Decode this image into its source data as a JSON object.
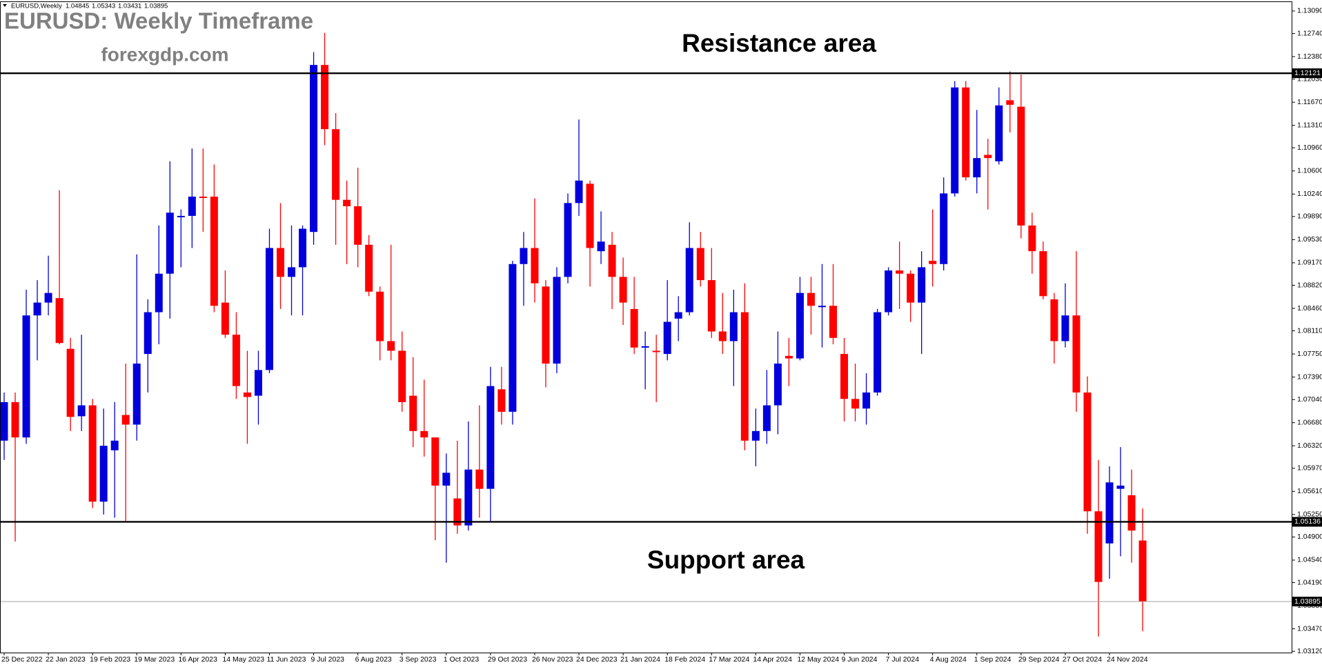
{
  "chart_data": {
    "type": "candlestick",
    "symbol": "EURUSD,Weekly",
    "title": "EURUSD: Weekly Timeframe",
    "subtitle": "forexgdp.com",
    "annotations": [
      "Resistance area",
      "Support area"
    ],
    "up_color": "#0000dd",
    "down_color": "#ff0000",
    "line_color": "#000000",
    "categories": [
      "25 Dec 2022",
      null,
      null,
      null,
      "22 Jan 2023",
      null,
      null,
      null,
      "19 Feb 2023",
      null,
      null,
      null,
      "19 Mar 2023",
      null,
      null,
      null,
      "16 Apr 2023",
      null,
      null,
      null,
      "14 May 2023",
      null,
      null,
      null,
      "11 Jun 2023",
      null,
      null,
      null,
      "9 Jul 2023",
      null,
      null,
      null,
      "6 Aug 2023",
      null,
      null,
      null,
      "3 Sep 2023",
      null,
      null,
      null,
      "1 Oct 2023",
      null,
      null,
      null,
      "29 Oct 2023",
      null,
      null,
      null,
      "26 Nov 2023",
      null,
      null,
      null,
      "24 Dec 2023",
      null,
      null,
      null,
      "21 Jan 2024",
      null,
      null,
      null,
      "18 Feb 2024",
      null,
      null,
      null,
      "17 Mar 2024",
      null,
      null,
      null,
      "14 Apr 2024",
      null,
      null,
      null,
      "12 May 2024",
      null,
      null,
      null,
      "9 Jun 2024",
      null,
      null,
      null,
      "7 Jul 2024",
      null,
      null,
      null,
      "4 Aug 2024",
      null,
      null,
      null,
      "1 Sep 2024",
      null,
      null,
      null,
      "29 Sep 2024",
      null,
      null,
      null,
      "27 Oct 2024",
      null,
      null,
      null,
      "24 Nov 2024",
      null,
      null,
      null
    ],
    "open": [
      1.064,
      1.07,
      1.0645,
      1.0835,
      1.0855,
      1.0862,
      1.0783,
      1.0678,
      1.0695,
      1.0545,
      1.0625,
      1.068,
      1.0665,
      1.0775,
      1.084,
      1.09,
      1.099,
      1.099,
      1.102,
      1.102,
      1.0855,
      1.0805,
      1.0715,
      1.071,
      1.075,
      1.094,
      1.0895,
      1.091,
      1.0965,
      1.1225,
      1.1125,
      1.1015,
      1.1005,
      1.0945,
      1.0872,
      1.0795,
      1.078,
      1.071,
      1.0655,
      1.0645,
      1.057,
      1.055,
      1.0508,
      1.0595,
      1.0565,
      1.072,
      1.0685,
      1.0915,
      1.094,
      1.088,
      1.076,
      1.0895,
      1.101,
      1.104,
      1.0935,
      1.0945,
      1.0895,
      1.0845,
      1.0785,
      1.078,
      1.0775,
      1.083,
      1.084,
      1.094,
      1.089,
      1.081,
      1.0795,
      1.084,
      1.064,
      1.0655,
      1.0695,
      1.0772,
      1.0768,
      1.087,
      1.0848,
      1.085,
      1.0775,
      1.0705,
      1.069,
      1.0715,
      1.084,
      1.0905,
      1.09,
      1.0855,
      1.092,
      1.0915,
      1.1025,
      1.119,
      1.105,
      1.1085,
      1.1075,
      1.117,
      1.116,
      1.0975,
      1.0935,
      1.086,
      1.0795,
      1.0835,
      1.0715,
      1.053,
      1.048,
      1.0565,
      1.0555,
      1.04845
    ],
    "high": [
      1.0715,
      1.0715,
      1.0875,
      1.089,
      1.0928,
      1.103,
      1.08,
      1.0805,
      1.0705,
      1.069,
      1.07,
      1.076,
      1.093,
      1.086,
      1.0975,
      1.1075,
      1.1,
      1.1095,
      1.1095,
      1.107,
      1.0905,
      1.084,
      1.078,
      1.078,
      1.097,
      1.101,
      1.0975,
      1.0975,
      1.1245,
      1.1275,
      1.115,
      1.1045,
      1.1065,
      1.096,
      1.088,
      1.0945,
      1.081,
      1.077,
      1.0735,
      1.0645,
      1.062,
      1.064,
      1.067,
      1.0695,
      1.0755,
      1.0755,
      1.092,
      1.0965,
      1.1017,
      1.089,
      1.091,
      1.1025,
      1.114,
      1.1045,
      1.0997,
      1.0965,
      1.0925,
      1.0895,
      1.081,
      1.0805,
      1.089,
      1.0865,
      1.098,
      1.0965,
      1.094,
      1.087,
      1.0875,
      1.0885,
      1.069,
      1.075,
      1.081,
      1.08,
      1.0895,
      1.0895,
      1.0915,
      1.0915,
      1.08,
      1.076,
      1.0745,
      1.0845,
      1.091,
      1.095,
      1.0905,
      1.0935,
      1.1,
      1.105,
      1.12,
      1.12,
      1.1155,
      1.111,
      1.119,
      1.1215,
      1.121,
      1.0995,
      1.095,
      1.087,
      1.0885,
      1.0935,
      1.074,
      1.061,
      1.06,
      1.063,
      1.0595,
      1.05343
    ],
    "low": [
      1.061,
      1.0483,
      1.0635,
      1.0765,
      1.0835,
      1.079,
      1.0655,
      1.0655,
      1.0535,
      1.0525,
      1.052,
      1.0515,
      1.064,
      1.0715,
      1.079,
      1.083,
      1.091,
      1.094,
      1.0965,
      1.084,
      1.08,
      1.0705,
      1.0635,
      1.0665,
      1.0745,
      1.0845,
      1.0835,
      1.0835,
      1.0945,
      1.11,
      1.0945,
      1.0915,
      1.091,
      1.0865,
      1.0765,
      1.0765,
      1.0685,
      1.063,
      1.0615,
      1.0485,
      1.045,
      1.0495,
      1.05,
      1.052,
      1.0515,
      1.0665,
      1.0665,
      1.085,
      1.0855,
      1.0723,
      1.0745,
      1.0885,
      1.099,
      1.088,
      1.0915,
      1.0845,
      1.082,
      1.0775,
      1.072,
      1.07,
      1.0765,
      1.0795,
      1.0835,
      1.088,
      1.08,
      1.0775,
      1.0725,
      1.0625,
      1.06,
      1.0635,
      1.065,
      1.0725,
      1.0765,
      1.0805,
      1.0785,
      1.079,
      1.067,
      1.067,
      1.0665,
      1.071,
      1.0835,
      1.0845,
      1.0825,
      1.0775,
      1.088,
      1.0905,
      1.102,
      1.1045,
      1.1025,
      1.1,
      1.107,
      1.112,
      1.0955,
      1.09,
      1.086,
      1.076,
      1.0785,
      1.0685,
      1.0495,
      1.0335,
      1.0425,
      1.046,
      1.045,
      1.03431
    ],
    "close": [
      1.07,
      1.0645,
      1.0835,
      1.0855,
      1.087,
      1.0792,
      1.0677,
      1.0695,
      1.0545,
      1.0632,
      1.064,
      1.0665,
      1.076,
      1.084,
      1.09,
      1.0995,
      1.099,
      1.102,
      1.1018,
      1.085,
      1.0805,
      1.0725,
      1.0708,
      1.075,
      1.094,
      1.0895,
      1.091,
      1.097,
      1.1225,
      1.1125,
      1.1015,
      1.1005,
      1.0945,
      1.0872,
      1.0795,
      1.078,
      1.07,
      1.0655,
      1.0645,
      1.057,
      1.059,
      1.0508,
      1.0595,
      1.0565,
      1.0725,
      1.0685,
      1.0915,
      1.094,
      1.0885,
      1.076,
      1.0895,
      1.101,
      1.1045,
      1.094,
      1.095,
      1.0895,
      1.0855,
      1.0785,
      1.0787,
      1.0778,
      1.0825,
      1.084,
      1.094,
      1.089,
      1.081,
      1.0795,
      1.084,
      1.064,
      1.0655,
      1.0695,
      1.076,
      1.0768,
      1.087,
      1.085,
      1.085,
      1.08,
      1.0705,
      1.069,
      1.0715,
      1.084,
      1.0905,
      1.09,
      1.0855,
      1.091,
      1.0915,
      1.1025,
      1.119,
      1.105,
      1.108,
      1.108,
      1.1162,
      1.1163,
      1.0975,
      1.0935,
      1.0865,
      1.0795,
      1.0835,
      1.0715,
      1.053,
      1.042,
      1.0575,
      1.057,
      1.05,
      1.03895
    ],
    "hlines": [
      1.12121,
      1.05136
    ],
    "ylim": [
      1.031,
      1.1324
    ],
    "yticks": [
      {
        "value": 1.1309,
        "label": "1.13090"
      },
      {
        "value": 1.1274,
        "label": "1.12740"
      },
      {
        "value": 1.1238,
        "label": "1.12380"
      },
      {
        "value": 1.1203,
        "label": "1.12030"
      },
      {
        "value": 1.1167,
        "label": "1.11670"
      },
      {
        "value": 1.1131,
        "label": "1.11310"
      },
      {
        "value": 1.1096,
        "label": "1.10960"
      },
      {
        "value": 1.106,
        "label": "1.10600"
      },
      {
        "value": 1.1024,
        "label": "1.10240"
      },
      {
        "value": 1.0989,
        "label": "1.09890"
      },
      {
        "value": 1.0953,
        "label": "1.09530"
      },
      {
        "value": 1.0917,
        "label": "1.09170"
      },
      {
        "value": 1.0882,
        "label": "1.08820"
      },
      {
        "value": 1.0846,
        "label": "1.08460"
      },
      {
        "value": 1.0811,
        "label": "1.08110"
      },
      {
        "value": 1.0775,
        "label": "1.07750"
      },
      {
        "value": 1.0739,
        "label": "1.07390"
      },
      {
        "value": 1.0704,
        "label": "1.07040"
      },
      {
        "value": 1.0668,
        "label": "1.06680"
      },
      {
        "value": 1.0632,
        "label": "1.06320"
      },
      {
        "value": 1.0597,
        "label": "1.05970"
      },
      {
        "value": 1.0561,
        "label": "1.05610"
      },
      {
        "value": 1.0525,
        "label": "1.05250"
      },
      {
        "value": 1.049,
        "label": "1.04900"
      },
      {
        "value": 1.0454,
        "label": "1.04540"
      },
      {
        "value": 1.0419,
        "label": "1.04190"
      },
      {
        "value": 1.0383,
        "label": "1.03830"
      },
      {
        "value": 1.0347,
        "label": "1.03470"
      },
      {
        "value": 1.0312,
        "label": "1.03120"
      }
    ]
  }
}
